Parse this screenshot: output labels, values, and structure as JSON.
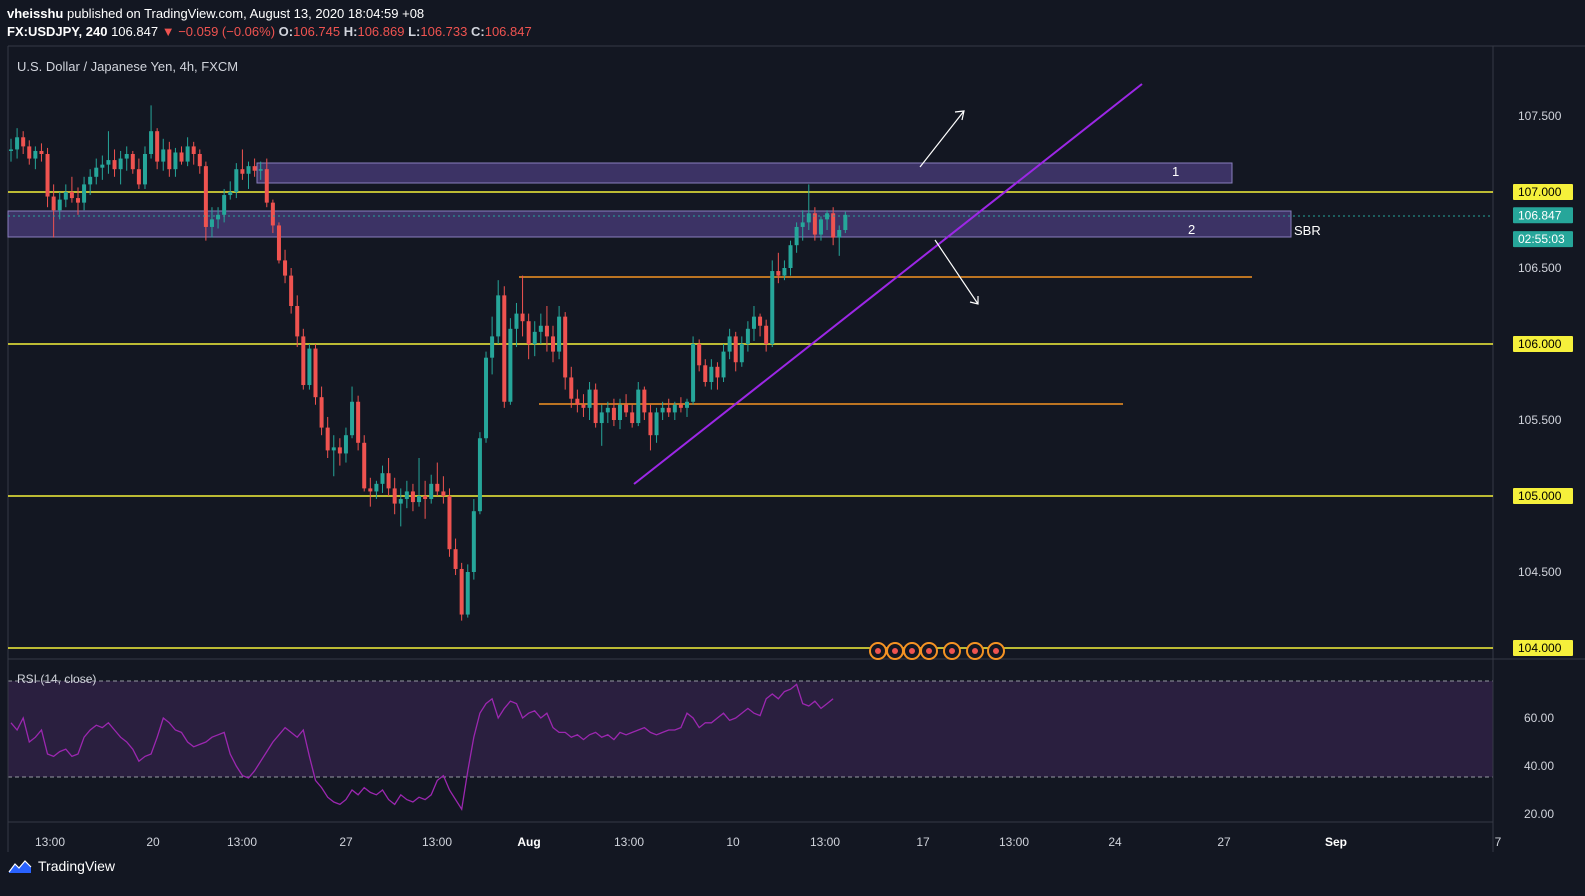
{
  "header": {
    "author": "vheisshu",
    "published_text": "published on TradingView.com, August 13, 2020 18:04:59 +08",
    "symbol": "FX:USDJPY, 240",
    "last": "106.847",
    "change": "−0.059 (−0.06%)",
    "o_label": "O:",
    "o_val": "106.745",
    "h_label": "H:",
    "h_val": "106.869",
    "l_label": "L:",
    "l_val": "106.733",
    "c_label": "C:",
    "c_val": "106.847"
  },
  "chart_title": "U.S. Dollar / Japanese Yen, 4h, FXCM",
  "rsi_label": "RSI (14, close)",
  "brand": "TradingView",
  "colors": {
    "background": "#131722",
    "up": "#26a69a",
    "down": "#ef5350",
    "level_line": "#f5f03b",
    "orange_line": "#f59323",
    "trendline": "#9c27e6",
    "zone_fill": "#5e4a9c",
    "rsi_line": "#9c27b0",
    "rsi_band": "#2a1f3f"
  },
  "chart_data": [
    {
      "type": "candlestick",
      "title": "U.S. Dollar / Japanese Yen, 4h, FXCM",
      "yticks": [
        "107.500",
        "107.000",
        "106.500",
        "106.000",
        "105.500",
        "105.000",
        "104.500",
        "104.000"
      ],
      "ylim": [
        103.9,
        107.85
      ],
      "xticks": [
        "13:00",
        "20",
        "13:00",
        "27",
        "13:00",
        "Aug",
        "13:00",
        "10",
        "13:00",
        "17",
        "13:00",
        "24",
        "27",
        "Sep",
        "7"
      ],
      "price_tags": [
        {
          "label": "107.000",
          "value": 107.0,
          "style": "yellow"
        },
        {
          "label": "106.847",
          "value": 106.847,
          "style": "teal"
        },
        {
          "label": "02:55:03",
          "value": 106.69,
          "style": "teal"
        },
        {
          "label": "106.000",
          "value": 106.0,
          "style": "yellow"
        },
        {
          "label": "105.000",
          "value": 105.0,
          "style": "yellow"
        },
        {
          "label": "104.000",
          "value": 104.0,
          "style": "yellow"
        }
      ],
      "horizontal_levels": [
        107.0,
        106.0,
        105.0,
        104.0
      ],
      "orange_levels": [
        {
          "value": 106.43,
          "x_start": "Aug 1 12:00",
          "x_end": "Aug 28"
        },
        {
          "value": 105.59,
          "x_start": "Aug 2 12:00",
          "x_end": "Aug 21"
        }
      ],
      "zones": [
        {
          "label": "1",
          "top": 107.19,
          "bottom": 107.05
        },
        {
          "label": "2",
          "top": 106.88,
          "bottom": 106.72
        },
        {
          "label": "SBR",
          "top": 106.88,
          "bottom": 106.72
        }
      ],
      "trendline": {
        "from": [
          105.06
        ],
        "to": [
          107.74
        ]
      },
      "candles": [
        [
          107.27,
          107.35,
          107.2,
          107.28
        ],
        [
          107.28,
          107.42,
          107.22,
          107.36
        ],
        [
          107.36,
          107.4,
          107.25,
          107.3
        ],
        [
          107.3,
          107.34,
          107.18,
          107.22
        ],
        [
          107.22,
          107.3,
          107.15,
          107.27
        ],
        [
          107.27,
          107.32,
          107.2,
          107.25
        ],
        [
          107.25,
          107.29,
          106.9,
          106.97
        ],
        [
          106.97,
          107.05,
          106.7,
          106.88
        ],
        [
          106.88,
          107.0,
          106.82,
          106.95
        ],
        [
          106.95,
          107.05,
          106.9,
          107.0
        ],
        [
          107.0,
          107.1,
          106.93,
          106.96
        ],
        [
          106.96,
          107.03,
          106.85,
          106.93
        ],
        [
          106.93,
          107.1,
          106.88,
          107.05
        ],
        [
          107.05,
          107.15,
          106.98,
          107.1
        ],
        [
          107.1,
          107.22,
          107.05,
          107.16
        ],
        [
          107.16,
          107.24,
          107.08,
          107.18
        ],
        [
          107.18,
          107.4,
          107.12,
          107.21
        ],
        [
          107.21,
          107.28,
          107.1,
          107.15
        ],
        [
          107.15,
          107.27,
          107.05,
          107.22
        ],
        [
          107.22,
          107.3,
          107.14,
          107.25
        ],
        [
          107.25,
          107.27,
          107.12,
          107.15
        ],
        [
          107.15,
          107.22,
          107.02,
          107.05
        ],
        [
          107.05,
          107.3,
          107.02,
          107.25
        ],
        [
          107.25,
          107.57,
          107.22,
          107.4
        ],
        [
          107.4,
          107.42,
          107.15,
          107.2
        ],
        [
          107.2,
          107.35,
          107.14,
          107.28
        ],
        [
          107.28,
          107.33,
          107.1,
          107.15
        ],
        [
          107.15,
          107.29,
          107.1,
          107.26
        ],
        [
          107.26,
          107.3,
          107.18,
          107.2
        ],
        [
          107.2,
          107.36,
          107.17,
          107.3
        ],
        [
          107.3,
          107.33,
          107.18,
          107.25
        ],
        [
          107.25,
          107.28,
          107.12,
          107.17
        ],
        [
          107.17,
          107.2,
          106.68,
          106.77
        ],
        [
          106.77,
          106.9,
          106.7,
          106.82
        ],
        [
          106.82,
          106.9,
          106.76,
          106.85
        ],
        [
          106.85,
          107.02,
          106.8,
          106.98
        ],
        [
          106.98,
          107.07,
          106.95,
          107.0
        ],
        [
          107.0,
          107.19,
          106.96,
          107.15
        ],
        [
          107.15,
          107.28,
          107.08,
          107.12
        ],
        [
          107.12,
          107.2,
          107.02,
          107.17
        ],
        [
          107.17,
          107.22,
          107.1,
          107.14
        ],
        [
          107.14,
          107.2,
          107.08,
          107.15
        ],
        [
          107.15,
          107.22,
          106.9,
          106.93
        ],
        [
          106.93,
          106.95,
          106.73,
          106.78
        ],
        [
          106.78,
          106.8,
          106.53,
          106.55
        ],
        [
          106.55,
          106.62,
          106.4,
          106.45
        ],
        [
          106.45,
          106.5,
          106.2,
          106.25
        ],
        [
          106.25,
          106.32,
          105.98,
          106.05
        ],
        [
          106.05,
          106.1,
          105.7,
          105.73
        ],
        [
          105.73,
          106.0,
          105.7,
          105.97
        ],
        [
          105.97,
          106.0,
          105.6,
          105.65
        ],
        [
          105.65,
          105.72,
          105.4,
          105.45
        ],
        [
          105.45,
          105.52,
          105.25,
          105.3
        ],
        [
          105.3,
          105.4,
          105.13,
          105.32
        ],
        [
          105.32,
          105.38,
          105.2,
          105.28
        ],
        [
          105.28,
          105.45,
          105.22,
          105.4
        ],
        [
          105.4,
          105.72,
          105.38,
          105.62
        ],
        [
          105.62,
          105.66,
          105.3,
          105.35
        ],
        [
          105.35,
          105.4,
          105.03,
          105.05
        ],
        [
          105.05,
          105.12,
          104.93,
          105.03
        ],
        [
          105.03,
          105.1,
          104.98,
          105.08
        ],
        [
          105.08,
          105.2,
          105.02,
          105.15
        ],
        [
          105.15,
          105.25,
          105.0,
          105.05
        ],
        [
          105.05,
          105.12,
          104.88,
          104.95
        ],
        [
          104.95,
          105.05,
          104.8,
          104.98
        ],
        [
          104.98,
          105.1,
          104.92,
          105.03
        ],
        [
          105.03,
          105.08,
          104.9,
          104.96
        ],
        [
          104.96,
          105.25,
          104.93,
          105.0
        ],
        [
          105.0,
          105.1,
          104.85,
          104.98
        ],
        [
          104.98,
          105.14,
          104.95,
          105.08
        ],
        [
          105.08,
          105.22,
          105.0,
          105.03
        ],
        [
          105.03,
          105.13,
          104.95,
          105.0
        ],
        [
          105.0,
          105.05,
          104.6,
          104.65
        ],
        [
          104.65,
          104.72,
          104.48,
          104.52
        ],
        [
          104.52,
          104.56,
          104.18,
          104.22
        ],
        [
          104.22,
          104.55,
          104.2,
          104.5
        ],
        [
          104.5,
          104.98,
          104.45,
          104.9
        ],
        [
          104.9,
          105.42,
          104.88,
          105.38
        ],
        [
          105.38,
          105.95,
          105.35,
          105.91
        ],
        [
          105.91,
          106.18,
          105.8,
          106.05
        ],
        [
          106.05,
          106.42,
          106.0,
          106.32
        ],
        [
          106.32,
          106.38,
          105.58,
          105.62
        ],
        [
          105.62,
          106.17,
          105.6,
          106.1
        ],
        [
          106.1,
          106.27,
          105.98,
          106.2
        ],
        [
          106.2,
          106.45,
          106.05,
          106.15
        ],
        [
          106.15,
          106.2,
          105.9,
          106.0
        ],
        [
          106.0,
          106.15,
          105.92,
          106.08
        ],
        [
          106.08,
          106.2,
          106.0,
          106.12
        ],
        [
          106.12,
          106.25,
          105.95,
          106.05
        ],
        [
          106.05,
          106.12,
          105.88,
          105.95
        ],
        [
          105.95,
          106.25,
          105.9,
          106.18
        ],
        [
          106.18,
          106.21,
          105.7,
          105.78
        ],
        [
          105.78,
          105.85,
          105.58,
          105.64
        ],
        [
          105.64,
          105.7,
          105.55,
          105.6
        ],
        [
          105.6,
          105.67,
          105.52,
          105.58
        ],
        [
          105.58,
          105.75,
          105.5,
          105.7
        ],
        [
          105.7,
          105.74,
          105.45,
          105.48
        ],
        [
          105.48,
          105.6,
          105.33,
          105.55
        ],
        [
          105.55,
          105.62,
          105.48,
          105.58
        ],
        [
          105.58,
          105.64,
          105.46,
          105.5
        ],
        [
          105.5,
          105.64,
          105.44,
          105.6
        ],
        [
          105.6,
          105.67,
          105.52,
          105.55
        ],
        [
          105.55,
          105.6,
          105.45,
          105.48
        ],
        [
          105.48,
          105.75,
          105.46,
          105.7
        ],
        [
          105.7,
          105.72,
          105.5,
          105.55
        ],
        [
          105.55,
          105.6,
          105.3,
          105.4
        ],
        [
          105.4,
          105.58,
          105.35,
          105.55
        ],
        [
          105.55,
          105.62,
          105.5,
          105.58
        ],
        [
          105.58,
          105.64,
          105.52,
          105.55
        ],
        [
          105.55,
          105.62,
          105.5,
          105.6
        ],
        [
          105.6,
          105.65,
          105.55,
          105.58
        ],
        [
          105.58,
          105.64,
          105.52,
          105.62
        ],
        [
          105.62,
          106.05,
          105.6,
          106.0
        ],
        [
          106.0,
          106.03,
          105.82,
          105.86
        ],
        [
          105.86,
          105.9,
          105.72,
          105.75
        ],
        [
          105.75,
          105.9,
          105.7,
          105.85
        ],
        [
          105.85,
          105.88,
          105.7,
          105.78
        ],
        [
          105.78,
          106.0,
          105.75,
          105.95
        ],
        [
          105.95,
          106.1,
          105.9,
          106.05
        ],
        [
          106.05,
          106.08,
          105.82,
          105.88
        ],
        [
          105.88,
          106.05,
          105.85,
          106.0
        ],
        [
          106.0,
          106.15,
          105.95,
          106.1
        ],
        [
          106.1,
          106.25,
          106.02,
          106.18
        ],
        [
          106.18,
          106.2,
          106.05,
          106.12
        ],
        [
          106.12,
          106.16,
          105.95,
          106.0
        ],
        [
          106.0,
          106.55,
          105.98,
          106.48
        ],
        [
          106.48,
          106.6,
          106.4,
          106.45
        ],
        [
          106.45,
          106.55,
          106.42,
          106.5
        ],
        [
          106.5,
          106.68,
          106.45,
          106.65
        ],
        [
          106.65,
          106.8,
          106.6,
          106.77
        ],
        [
          106.77,
          106.88,
          106.68,
          106.8
        ],
        [
          106.8,
          107.05,
          106.75,
          106.86
        ],
        [
          106.86,
          106.9,
          106.68,
          106.72
        ],
        [
          106.72,
          106.84,
          106.68,
          106.82
        ],
        [
          106.82,
          106.88,
          106.75,
          106.86
        ],
        [
          106.86,
          106.9,
          106.65,
          106.7
        ],
        [
          106.7,
          106.78,
          106.58,
          106.75
        ],
        [
          106.75,
          106.87,
          106.73,
          106.85
        ]
      ]
    },
    {
      "type": "line",
      "title": "RSI (14, close)",
      "yticks": [
        "60.00",
        "40.00",
        "20.00"
      ],
      "ylim": [
        15,
        77
      ],
      "band": [
        30,
        70
      ],
      "values": [
        58,
        55,
        60,
        50,
        52,
        55,
        45,
        44,
        46,
        47,
        44,
        45,
        52,
        55,
        57,
        56,
        58,
        55,
        52,
        50,
        47,
        42,
        44,
        45,
        52,
        60,
        58,
        55,
        54,
        50,
        48,
        49,
        50,
        52,
        53,
        54,
        45,
        40,
        36,
        35,
        38,
        42,
        46,
        50,
        53,
        56,
        54,
        52,
        55,
        44,
        34,
        31,
        27,
        25,
        24,
        26,
        30,
        28,
        31,
        29,
        28,
        30,
        26,
        24,
        28,
        26,
        25,
        27,
        26,
        28,
        34,
        36,
        30,
        26,
        22,
        38,
        52,
        62,
        66,
        68,
        60,
        64,
        67,
        66,
        60,
        62,
        63,
        60,
        62,
        56,
        54,
        54,
        52,
        53,
        51,
        53,
        54,
        52,
        53,
        51,
        54,
        53,
        54,
        55,
        56,
        54,
        53,
        54,
        55,
        55,
        56,
        62,
        60,
        56,
        58,
        58,
        60,
        62,
        59,
        60,
        62,
        64,
        62,
        61,
        68,
        70,
        68,
        71,
        72,
        74,
        66,
        65,
        67,
        64,
        66,
        68
      ]
    }
  ]
}
